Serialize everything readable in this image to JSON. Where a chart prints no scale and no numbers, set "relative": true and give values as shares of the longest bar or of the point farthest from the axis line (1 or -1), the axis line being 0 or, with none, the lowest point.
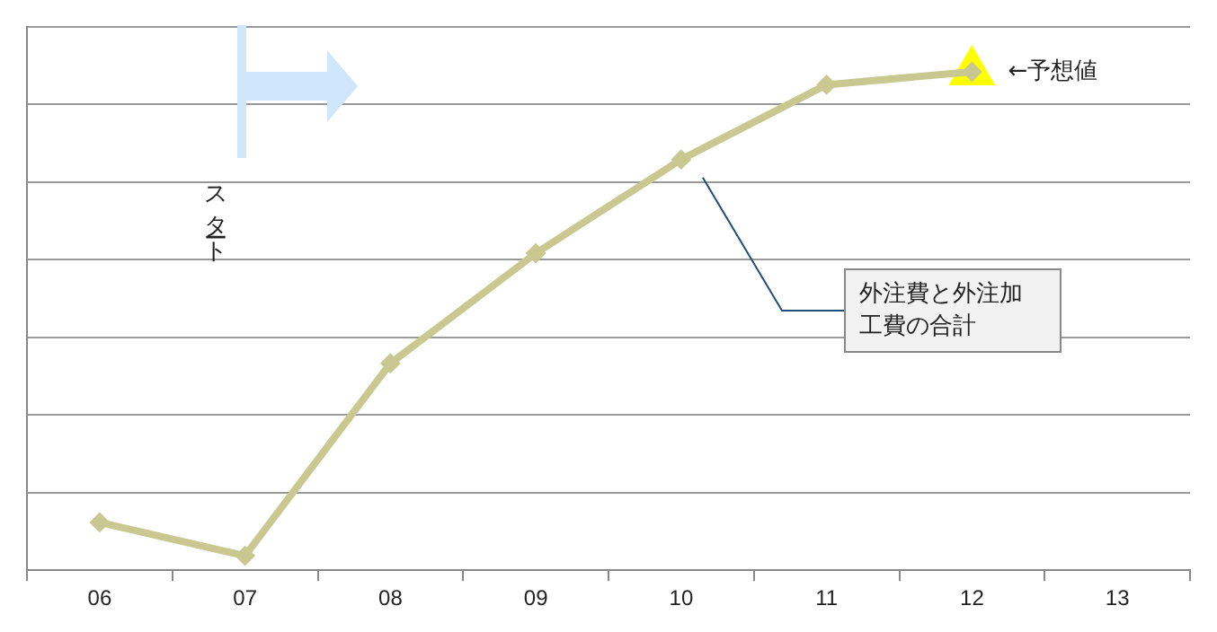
{
  "chart_data": {
    "type": "line",
    "relative": true,
    "categories": [
      "06",
      "07",
      "08",
      "09",
      "10",
      "11",
      "12",
      "13"
    ],
    "series": [
      {
        "name": "外注費と外注加工費の合計",
        "color": "#c8c890",
        "values": [
          0.096,
          0.029,
          0.415,
          0.636,
          0.824,
          0.974,
          1,
          null
        ]
      },
      {
        "type": "scatter",
        "color": "#ffff00",
        "x": [
          "12"
        ],
        "values": [
          1
        ],
        "marker": "triangle"
      }
    ],
    "marker": "diamond",
    "grid": "y",
    "legend": false,
    "annotations": [
      {
        "text": "←予想値",
        "x": "12",
        "y": 1
      },
      "スタート"
    ]
  }
}
